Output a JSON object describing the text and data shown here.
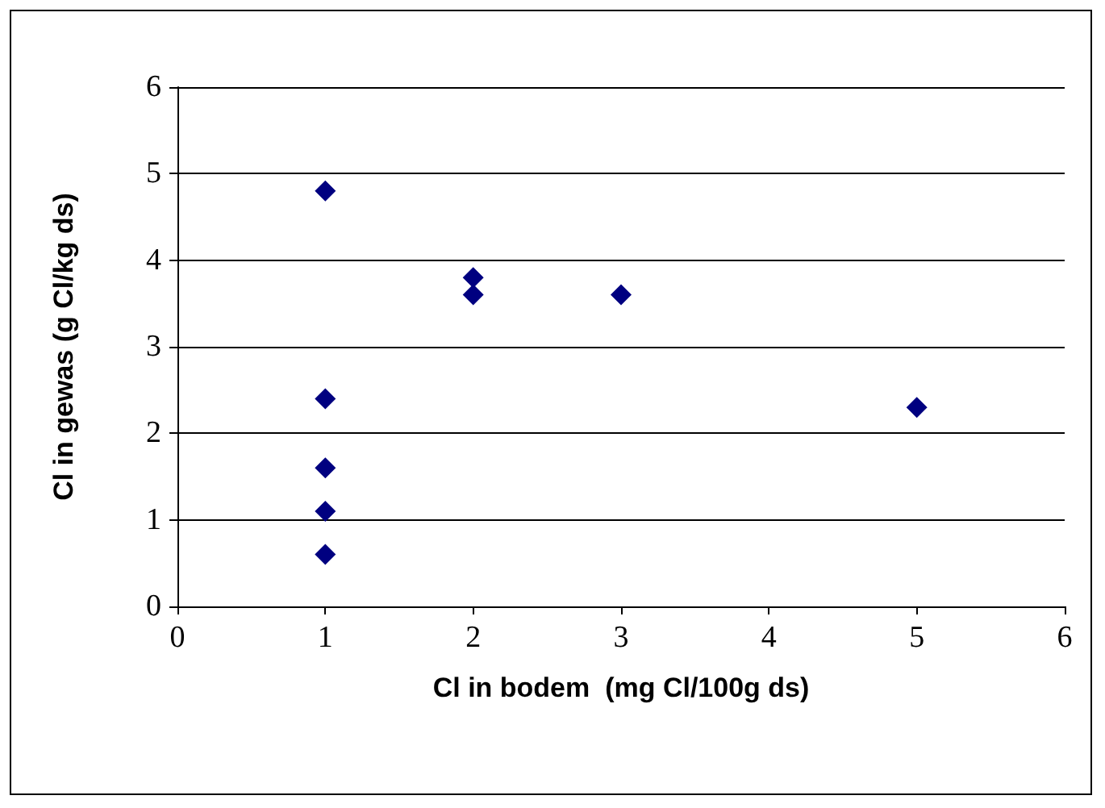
{
  "chart_data": {
    "type": "scatter",
    "xlabel": "Cl in bodem  (mg Cl/100g ds)",
    "ylabel": "Cl in gewas (g Cl/kg ds)",
    "x": [
      1,
      1,
      1,
      1,
      1,
      2,
      2,
      3,
      5
    ],
    "series": [
      {
        "color": "#000080",
        "values": [
          4.8,
          2.4,
          1.6,
          1.1,
          0.6,
          3.8,
          3.6,
          3.6,
          2.3
        ]
      }
    ],
    "xlim": [
      0,
      6
    ],
    "xticks": [
      0,
      1,
      2,
      3,
      4,
      5,
      6
    ],
    "ylim": [
      0,
      6
    ],
    "yticks": [
      0,
      1,
      2,
      3,
      4,
      5,
      6
    ],
    "grid": "y",
    "marker": "diamond"
  }
}
